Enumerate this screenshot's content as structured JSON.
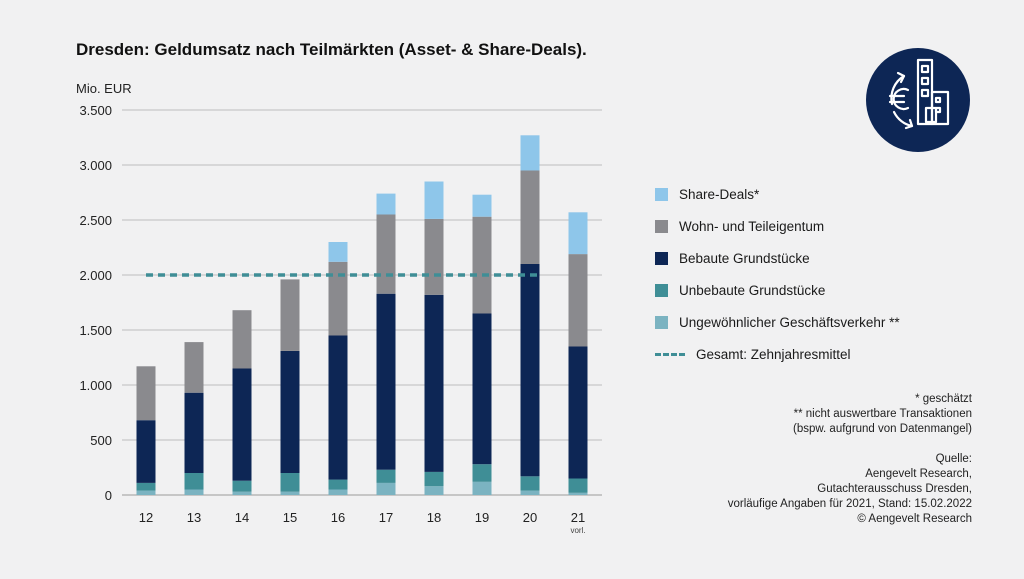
{
  "title": "Dresden: Geldumsatz nach Teilmärkten (Asset- & Share-Deals).",
  "colors": {
    "share": "#8ec6ea",
    "wohn": "#8a8a8e",
    "bebaut": "#0d2655",
    "unbebaut": "#3f8e96",
    "ungewoehnlich": "#7bb3c1",
    "mean": "#3f8e96",
    "grid": "#bdbdbd",
    "logo_bg": "#0d2655"
  },
  "chart_data": {
    "type": "bar",
    "stacked": true,
    "ylabel": "Mio. EUR",
    "ylim": [
      0,
      3500
    ],
    "yticks": [
      0,
      500,
      1000,
      1500,
      2000,
      2500,
      3000,
      3500
    ],
    "ytick_labels": [
      "0",
      "500",
      "1.000",
      "1.500",
      "2.000",
      "2.500",
      "3.000",
      "3.500"
    ],
    "categories": [
      "12",
      "13",
      "14",
      "15",
      "16",
      "17",
      "18",
      "19",
      "20",
      "21"
    ],
    "category_sublabels": [
      "",
      "",
      "",
      "",
      "",
      "",
      "",
      "",
      "",
      "vorl."
    ],
    "series": [
      {
        "name": "Ungewöhnlicher Geschäftsverkehr **",
        "key": "ungewoehnlich",
        "values": [
          40,
          50,
          30,
          30,
          50,
          110,
          80,
          120,
          40,
          20
        ]
      },
      {
        "name": "Unbebaute Grundstücke",
        "key": "unbebaut",
        "values": [
          70,
          150,
          100,
          170,
          90,
          120,
          130,
          160,
          130,
          130
        ]
      },
      {
        "name": "Bebaute Grundstücke",
        "key": "bebaut",
        "values": [
          570,
          730,
          1020,
          1110,
          1310,
          1600,
          1610,
          1370,
          1930,
          1200
        ]
      },
      {
        "name": "Wohn- und Teileigentum",
        "key": "wohn",
        "values": [
          490,
          460,
          530,
          650,
          670,
          720,
          690,
          880,
          850,
          840
        ]
      },
      {
        "name": "Share-Deals*",
        "key": "share",
        "values": [
          0,
          0,
          0,
          0,
          180,
          190,
          340,
          200,
          320,
          380
        ]
      }
    ],
    "mean_line": {
      "name": "Gesamt: Zehnjahresmittel",
      "value": 2000,
      "from": "12",
      "to": "20"
    },
    "grid": true,
    "legend_position": "right"
  },
  "legend": [
    {
      "label": "Share-Deals*",
      "key": "share",
      "kind": "box"
    },
    {
      "label": "Wohn- und Teileigentum",
      "key": "wohn",
      "kind": "box"
    },
    {
      "label": "Bebaute Grundstücke",
      "key": "bebaut",
      "kind": "box"
    },
    {
      "label": "Unbebaute Grundstücke",
      "key": "unbebaut",
      "kind": "box"
    },
    {
      "label": "Ungewöhnlicher Geschäftsverkehr **",
      "key": "ungewoehnlich",
      "kind": "box"
    },
    {
      "label": "Gesamt: Zehnjahresmittel",
      "key": "mean",
      "kind": "dash"
    }
  ],
  "notes": {
    "estimated": "* geschätzt",
    "not_evaluable_1": "** nicht auswertbare Transaktionen",
    "not_evaluable_2": "(bspw. aufgrund von Datenmangel)",
    "source_label": "Quelle:",
    "source_1": "Aengevelt Research,",
    "source_2": "Gutachterausschuss Dresden,",
    "source_3": "vorläufige Angaben für 2021, Stand: 15.02.2022",
    "copyright": "© Aengevelt Research"
  },
  "logo_icon": "euro-building-icon"
}
